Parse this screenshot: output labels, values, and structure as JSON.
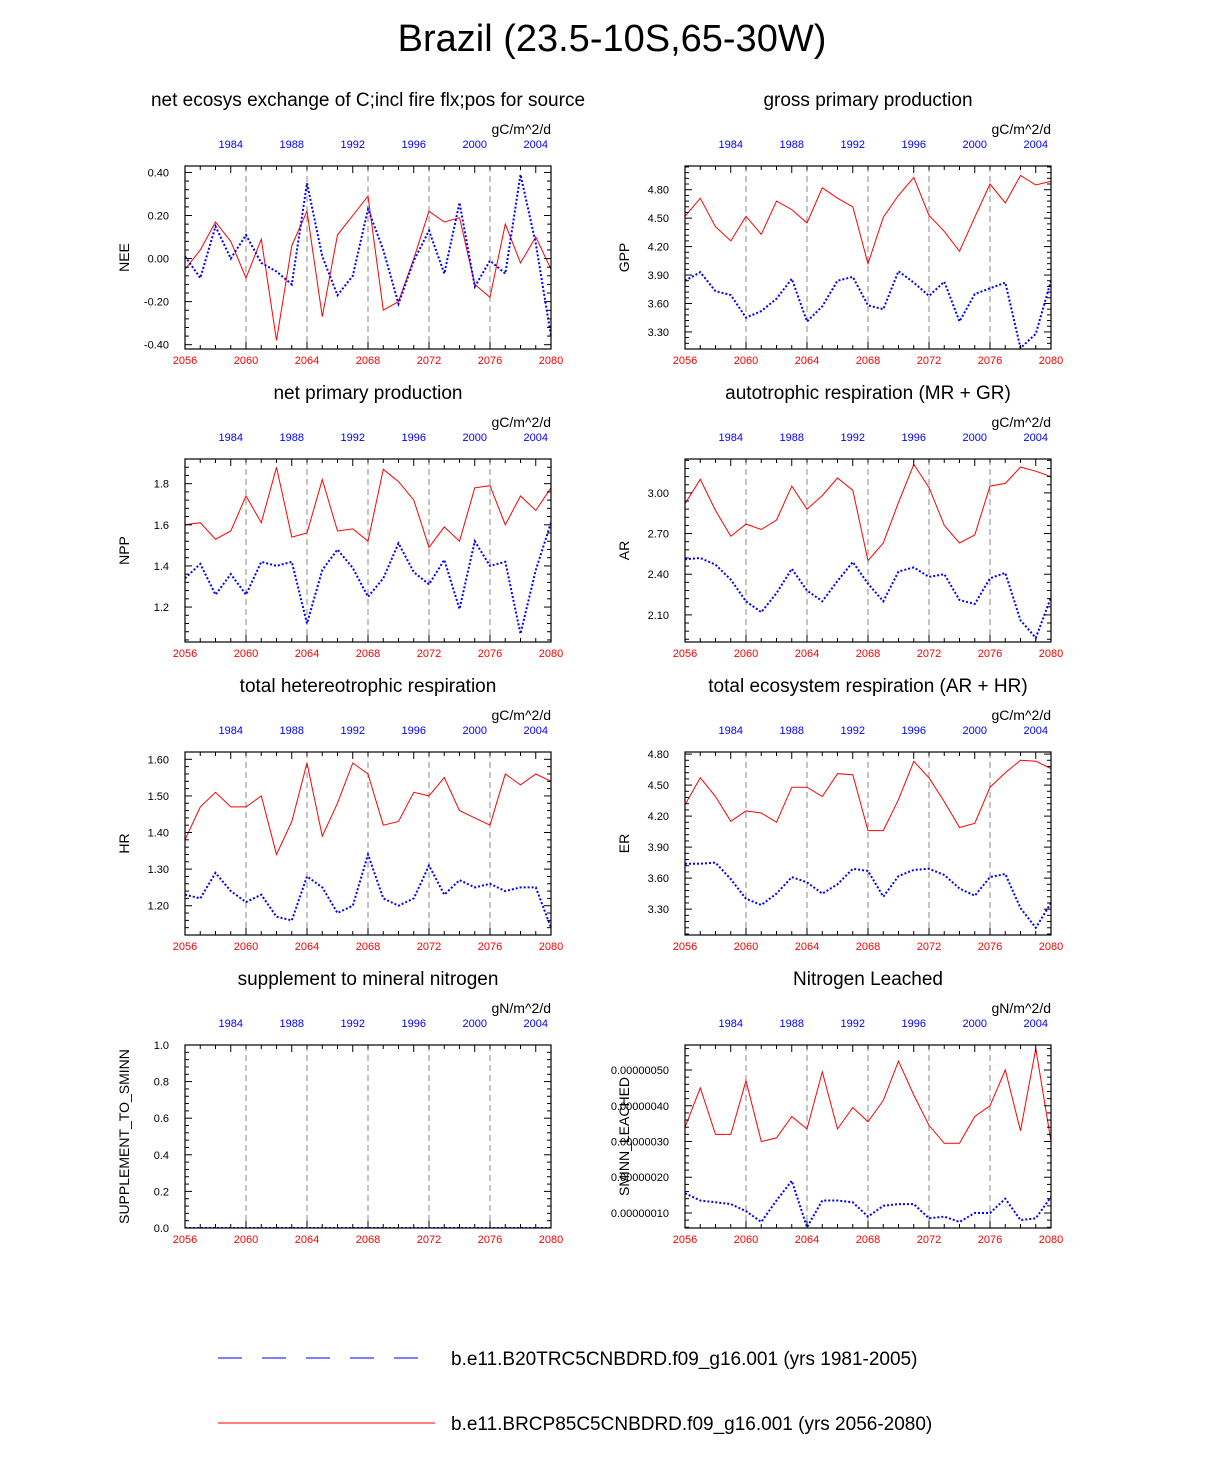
{
  "figure": {
    "title": "Brazil (23.5-10S,65-30W)"
  },
  "colors": {
    "series_2056_2080": "#ff0000",
    "series_1981_2005": "#0000ff",
    "grid": "#888888",
    "axis": "#000000"
  },
  "legend": [
    {
      "label": "b.e11.B20TRC5CNBDRD.f09_g16.001 (yrs 1981-2005)",
      "color": "#0000ff",
      "style": "dashed"
    },
    {
      "label": "b.e11.BRCP85C5CNBDRD.f09_g16.001 (yrs 2056-2080)",
      "color": "#ff0000",
      "style": "solid"
    }
  ],
  "chart_data": [
    {
      "type": "line",
      "title": "net ecosys exchange of C;incl fire flx;pos for source",
      "units": "gC/m^2/d",
      "ylabel": "NEE",
      "xlim_bottom": [
        2056,
        2080
      ],
      "xticks_bottom": [
        "2056",
        "2060",
        "2064",
        "2068",
        "2072",
        "2076",
        "2080"
      ],
      "xlim_top": [
        1981,
        2005
      ],
      "xticks_top": [
        "1984",
        "1988",
        "1992",
        "1996",
        "2000",
        "2004"
      ],
      "ylim": [
        -0.42,
        0.43
      ],
      "yticks": [
        "-0.40",
        "-0.20",
        "0.00",
        "0.20",
        "0.40"
      ],
      "series": [
        {
          "name": "b.e11.BRCP85C5CNBDRD.f09_g16.001 (yrs 2056-2080)",
          "style": "solid",
          "values": [
            -0.05,
            0.04,
            0.17,
            0.08,
            -0.09,
            0.09,
            -0.38,
            0.06,
            0.22,
            -0.27,
            0.11,
            0.2,
            0.29,
            -0.24,
            -0.2,
            0.0,
            0.22,
            0.17,
            0.19,
            -0.12,
            -0.18,
            0.16,
            -0.02,
            0.1,
            -0.05
          ]
        },
        {
          "name": "b.e11.B20TRC5CNBDRD.f09_g16.001 (yrs 1981-2005)",
          "style": "dashed",
          "values": [
            0.01,
            -0.09,
            0.15,
            0.0,
            0.11,
            -0.02,
            -0.06,
            -0.12,
            0.35,
            0.01,
            -0.17,
            -0.08,
            0.23,
            0.04,
            -0.21,
            -0.01,
            0.13,
            -0.07,
            0.26,
            -0.13,
            -0.01,
            -0.07,
            0.39,
            0.07,
            -0.36
          ]
        }
      ]
    },
    {
      "type": "line",
      "title": "gross primary production",
      "units": "gC/m^2/d",
      "ylabel": "GPP",
      "xlim_bottom": [
        2056,
        2080
      ],
      "xticks_bottom": [
        "2056",
        "2060",
        "2064",
        "2068",
        "2072",
        "2076",
        "2080"
      ],
      "xlim_top": [
        1981,
        2005
      ],
      "xticks_top": [
        "1984",
        "1988",
        "1992",
        "1996",
        "2000",
        "2004"
      ],
      "ylim": [
        3.12,
        5.05
      ],
      "yticks": [
        "3.30",
        "3.60",
        "3.90",
        "4.20",
        "4.50",
        "4.80"
      ],
      "series": [
        {
          "name": "b.e11.BRCP85C5CNBDRD.f09_g16.001 (yrs 2056-2080)",
          "style": "solid",
          "values": [
            4.52,
            4.71,
            4.41,
            4.26,
            4.52,
            4.33,
            4.68,
            4.59,
            4.45,
            4.82,
            4.71,
            4.62,
            4.02,
            4.51,
            4.74,
            4.93,
            4.53,
            4.36,
            4.15,
            4.51,
            4.86,
            4.66,
            4.95,
            4.85,
            4.89
          ]
        },
        {
          "name": "b.e11.B20TRC5CNBDRD.f09_g16.001 (yrs 1981-2005)",
          "style": "dashed",
          "values": [
            3.84,
            3.93,
            3.73,
            3.69,
            3.45,
            3.52,
            3.65,
            3.86,
            3.41,
            3.57,
            3.84,
            3.88,
            3.58,
            3.54,
            3.94,
            3.82,
            3.68,
            3.83,
            3.41,
            3.7,
            3.76,
            3.82,
            3.13,
            3.28,
            3.84
          ]
        }
      ]
    },
    {
      "type": "line",
      "title": "net primary production",
      "units": "gC/m^2/d",
      "ylabel": "NPP",
      "xlim_bottom": [
        2056,
        2080
      ],
      "xticks_bottom": [
        "2056",
        "2060",
        "2064",
        "2068",
        "2072",
        "2076",
        "2080"
      ],
      "xlim_top": [
        1981,
        2005
      ],
      "xticks_top": [
        "1984",
        "1988",
        "1992",
        "1996",
        "2000",
        "2004"
      ],
      "ylim": [
        1.03,
        1.92
      ],
      "yticks": [
        "1.2",
        "1.4",
        "1.6",
        "1.8"
      ],
      "series": [
        {
          "name": "b.e11.BRCP85C5CNBDRD.f09_g16.001 (yrs 2056-2080)",
          "style": "solid",
          "values": [
            1.6,
            1.61,
            1.53,
            1.57,
            1.74,
            1.61,
            1.88,
            1.54,
            1.56,
            1.82,
            1.57,
            1.58,
            1.52,
            1.87,
            1.81,
            1.72,
            1.49,
            1.59,
            1.52,
            1.78,
            1.79,
            1.6,
            1.74,
            1.67,
            1.78
          ]
        },
        {
          "name": "b.e11.B20TRC5CNBDRD.f09_g16.001 (yrs 1981-2005)",
          "style": "dashed",
          "values": [
            1.34,
            1.41,
            1.26,
            1.36,
            1.26,
            1.42,
            1.4,
            1.42,
            1.12,
            1.38,
            1.48,
            1.39,
            1.25,
            1.34,
            1.51,
            1.37,
            1.31,
            1.43,
            1.19,
            1.52,
            1.4,
            1.42,
            1.07,
            1.38,
            1.61
          ]
        }
      ]
    },
    {
      "type": "line",
      "title": "autotrophic respiration (MR + GR)",
      "units": "gC/m^2/d",
      "ylabel": "AR",
      "xlim_bottom": [
        2056,
        2080
      ],
      "xticks_bottom": [
        "2056",
        "2060",
        "2064",
        "2068",
        "2072",
        "2076",
        "2080"
      ],
      "xlim_top": [
        1981,
        2005
      ],
      "xticks_top": [
        "1984",
        "1988",
        "1992",
        "1996",
        "2000",
        "2004"
      ],
      "ylim": [
        1.9,
        3.25
      ],
      "yticks": [
        "2.10",
        "2.40",
        "2.70",
        "3.00"
      ],
      "series": [
        {
          "name": "b.e11.BRCP85C5CNBDRD.f09_g16.001 (yrs 2056-2080)",
          "style": "solid",
          "values": [
            2.92,
            3.1,
            2.87,
            2.68,
            2.77,
            2.73,
            2.8,
            3.05,
            2.88,
            2.98,
            3.11,
            3.02,
            2.5,
            2.63,
            2.93,
            3.21,
            3.04,
            2.76,
            2.63,
            2.69,
            3.05,
            3.07,
            3.19,
            3.16,
            3.12
          ]
        },
        {
          "name": "b.e11.B20TRC5CNBDRD.f09_g16.001 (yrs 1981-2005)",
          "style": "dashed",
          "values": [
            2.51,
            2.52,
            2.47,
            2.36,
            2.2,
            2.12,
            2.26,
            2.44,
            2.28,
            2.2,
            2.35,
            2.49,
            2.33,
            2.2,
            2.42,
            2.45,
            2.38,
            2.4,
            2.21,
            2.18,
            2.37,
            2.41,
            2.06,
            1.93,
            2.23
          ]
        }
      ]
    },
    {
      "type": "line",
      "title": "total hetereotrophic respiration",
      "units": "gC/m^2/d",
      "ylabel": "HR",
      "xlim_bottom": [
        2056,
        2080
      ],
      "xticks_bottom": [
        "2056",
        "2060",
        "2064",
        "2068",
        "2072",
        "2076",
        "2080"
      ],
      "xlim_top": [
        1981,
        2005
      ],
      "xticks_top": [
        "1984",
        "1988",
        "1992",
        "1996",
        "2000",
        "2004"
      ],
      "ylim": [
        1.12,
        1.62
      ],
      "yticks": [
        "1.20",
        "1.30",
        "1.40",
        "1.50",
        "1.60"
      ],
      "series": [
        {
          "name": "b.e11.BRCP85C5CNBDRD.f09_g16.001 (yrs 2056-2080)",
          "style": "solid",
          "values": [
            1.38,
            1.47,
            1.51,
            1.47,
            1.47,
            1.5,
            1.34,
            1.43,
            1.59,
            1.39,
            1.48,
            1.59,
            1.56,
            1.42,
            1.43,
            1.51,
            1.5,
            1.55,
            1.46,
            1.44,
            1.42,
            1.56,
            1.53,
            1.56,
            1.54
          ]
        },
        {
          "name": "b.e11.B20TRC5CNBDRD.f09_g16.001 (yrs 1981-2005)",
          "style": "dashed",
          "values": [
            1.23,
            1.22,
            1.29,
            1.24,
            1.21,
            1.23,
            1.17,
            1.16,
            1.28,
            1.25,
            1.18,
            1.2,
            1.34,
            1.22,
            1.2,
            1.22,
            1.31,
            1.23,
            1.27,
            1.25,
            1.26,
            1.24,
            1.25,
            1.25,
            1.14
          ]
        }
      ]
    },
    {
      "type": "line",
      "title": "total ecosystem respiration (AR + HR)",
      "units": "gC/m^2/d",
      "ylabel": "ER",
      "xlim_bottom": [
        2056,
        2080
      ],
      "xticks_bottom": [
        "2056",
        "2060",
        "2064",
        "2068",
        "2072",
        "2076",
        "2080"
      ],
      "xlim_top": [
        1981,
        2005
      ],
      "xticks_top": [
        "1984",
        "1988",
        "1992",
        "1996",
        "2000",
        "2004"
      ],
      "ylim": [
        3.05,
        4.82
      ],
      "yticks": [
        "3.30",
        "3.60",
        "3.90",
        "4.20",
        "4.50",
        "4.80"
      ],
      "series": [
        {
          "name": "b.e11.BRCP85C5CNBDRD.f09_g16.001 (yrs 2056-2080)",
          "style": "solid",
          "values": [
            4.31,
            4.57,
            4.39,
            4.15,
            4.25,
            4.23,
            4.14,
            4.48,
            4.48,
            4.39,
            4.61,
            4.6,
            4.06,
            4.06,
            4.36,
            4.73,
            4.57,
            4.34,
            4.09,
            4.13,
            4.48,
            4.62,
            4.74,
            4.73,
            4.66
          ]
        },
        {
          "name": "b.e11.B20TRC5CNBDRD.f09_g16.001 (yrs 1981-2005)",
          "style": "dashed",
          "values": [
            3.74,
            3.74,
            3.75,
            3.59,
            3.4,
            3.34,
            3.45,
            3.61,
            3.56,
            3.45,
            3.54,
            3.69,
            3.67,
            3.42,
            3.62,
            3.68,
            3.69,
            3.63,
            3.5,
            3.43,
            3.61,
            3.64,
            3.31,
            3.12,
            3.36
          ]
        }
      ]
    },
    {
      "type": "line",
      "title": "supplement to mineral nitrogen",
      "units": "gN/m^2/d",
      "ylabel": "SUPPLEMENT_TO_SMINN",
      "xlim_bottom": [
        2056,
        2080
      ],
      "xticks_bottom": [
        "2056",
        "2060",
        "2064",
        "2068",
        "2072",
        "2076",
        "2080"
      ],
      "xlim_top": [
        1981,
        2005
      ],
      "xticks_top": [
        "1984",
        "1988",
        "1992",
        "1996",
        "2000",
        "2004"
      ],
      "ylim": [
        0,
        1
      ],
      "yticks": [
        "0.0",
        "0.2",
        "0.4",
        "0.6",
        "0.8",
        "1.0"
      ],
      "series": [
        {
          "name": "b.e11.BRCP85C5CNBDRD.f09_g16.001 (yrs 2056-2080)",
          "style": "solid",
          "values": [
            0,
            0,
            0,
            0,
            0,
            0,
            0,
            0,
            0,
            0,
            0,
            0,
            0,
            0,
            0,
            0,
            0,
            0,
            0,
            0,
            0,
            0,
            0,
            0,
            0
          ]
        },
        {
          "name": "b.e11.B20TRC5CNBDRD.f09_g16.001 (yrs 1981-2005)",
          "style": "dashed",
          "values": [
            0,
            0,
            0,
            0,
            0,
            0,
            0,
            0,
            0,
            0,
            0,
            0,
            0,
            0,
            0,
            0,
            0,
            0,
            0,
            0,
            0,
            0,
            0,
            0,
            0
          ]
        }
      ]
    },
    {
      "type": "line",
      "title": "Nitrogen Leached",
      "units": "gN/m^2/d",
      "ylabel": "SMINN_LEACHED",
      "xlim_bottom": [
        2056,
        2080
      ],
      "xticks_bottom": [
        "2056",
        "2060",
        "2064",
        "2068",
        "2072",
        "2076",
        "2080"
      ],
      "xlim_top": [
        1981,
        2005
      ],
      "xticks_top": [
        "1984",
        "1988",
        "1992",
        "1996",
        "2000",
        "2004"
      ],
      "ylim": [
        5.8e-08,
        5.7e-07
      ],
      "yticks": [
        "0.00000010",
        "0.00000020",
        "0.00000030",
        "0.00000040",
        "0.00000050"
      ],
      "series": [
        {
          "name": "b.e11.BRCP85C5CNBDRD.f09_g16.001 (yrs 2056-2080)",
          "style": "solid",
          "values": [
            3.4e-07,
            4.5e-07,
            3.2e-07,
            3.2e-07,
            4.7e-07,
            3e-07,
            3.1e-07,
            3.7e-07,
            3.35e-07,
            4.95e-07,
            3.35e-07,
            3.95e-07,
            3.55e-07,
            4.15e-07,
            5.25e-07,
            4.3e-07,
            3.45e-07,
            2.95e-07,
            2.95e-07,
            3.7e-07,
            4e-07,
            5e-07,
            3.3e-07,
            5.6e-07,
            3e-07
          ]
        },
        {
          "name": "b.e11.B20TRC5CNBDRD.f09_g16.001 (yrs 1981-2005)",
          "style": "dashed",
          "values": [
            1.55e-07,
            1.35e-07,
            1.3e-07,
            1.25e-07,
            1.05e-07,
            7.5e-08,
            1.35e-07,
            1.9e-07,
            6e-08,
            1.35e-07,
            1.35e-07,
            1.3e-07,
            9e-08,
            1.2e-07,
            1.25e-07,
            1.25e-07,
            8.5e-08,
            9e-08,
            7.5e-08,
            1e-07,
            1e-07,
            1.4e-07,
            8e-08,
            8.5e-08,
            1.45e-07
          ]
        }
      ]
    }
  ]
}
